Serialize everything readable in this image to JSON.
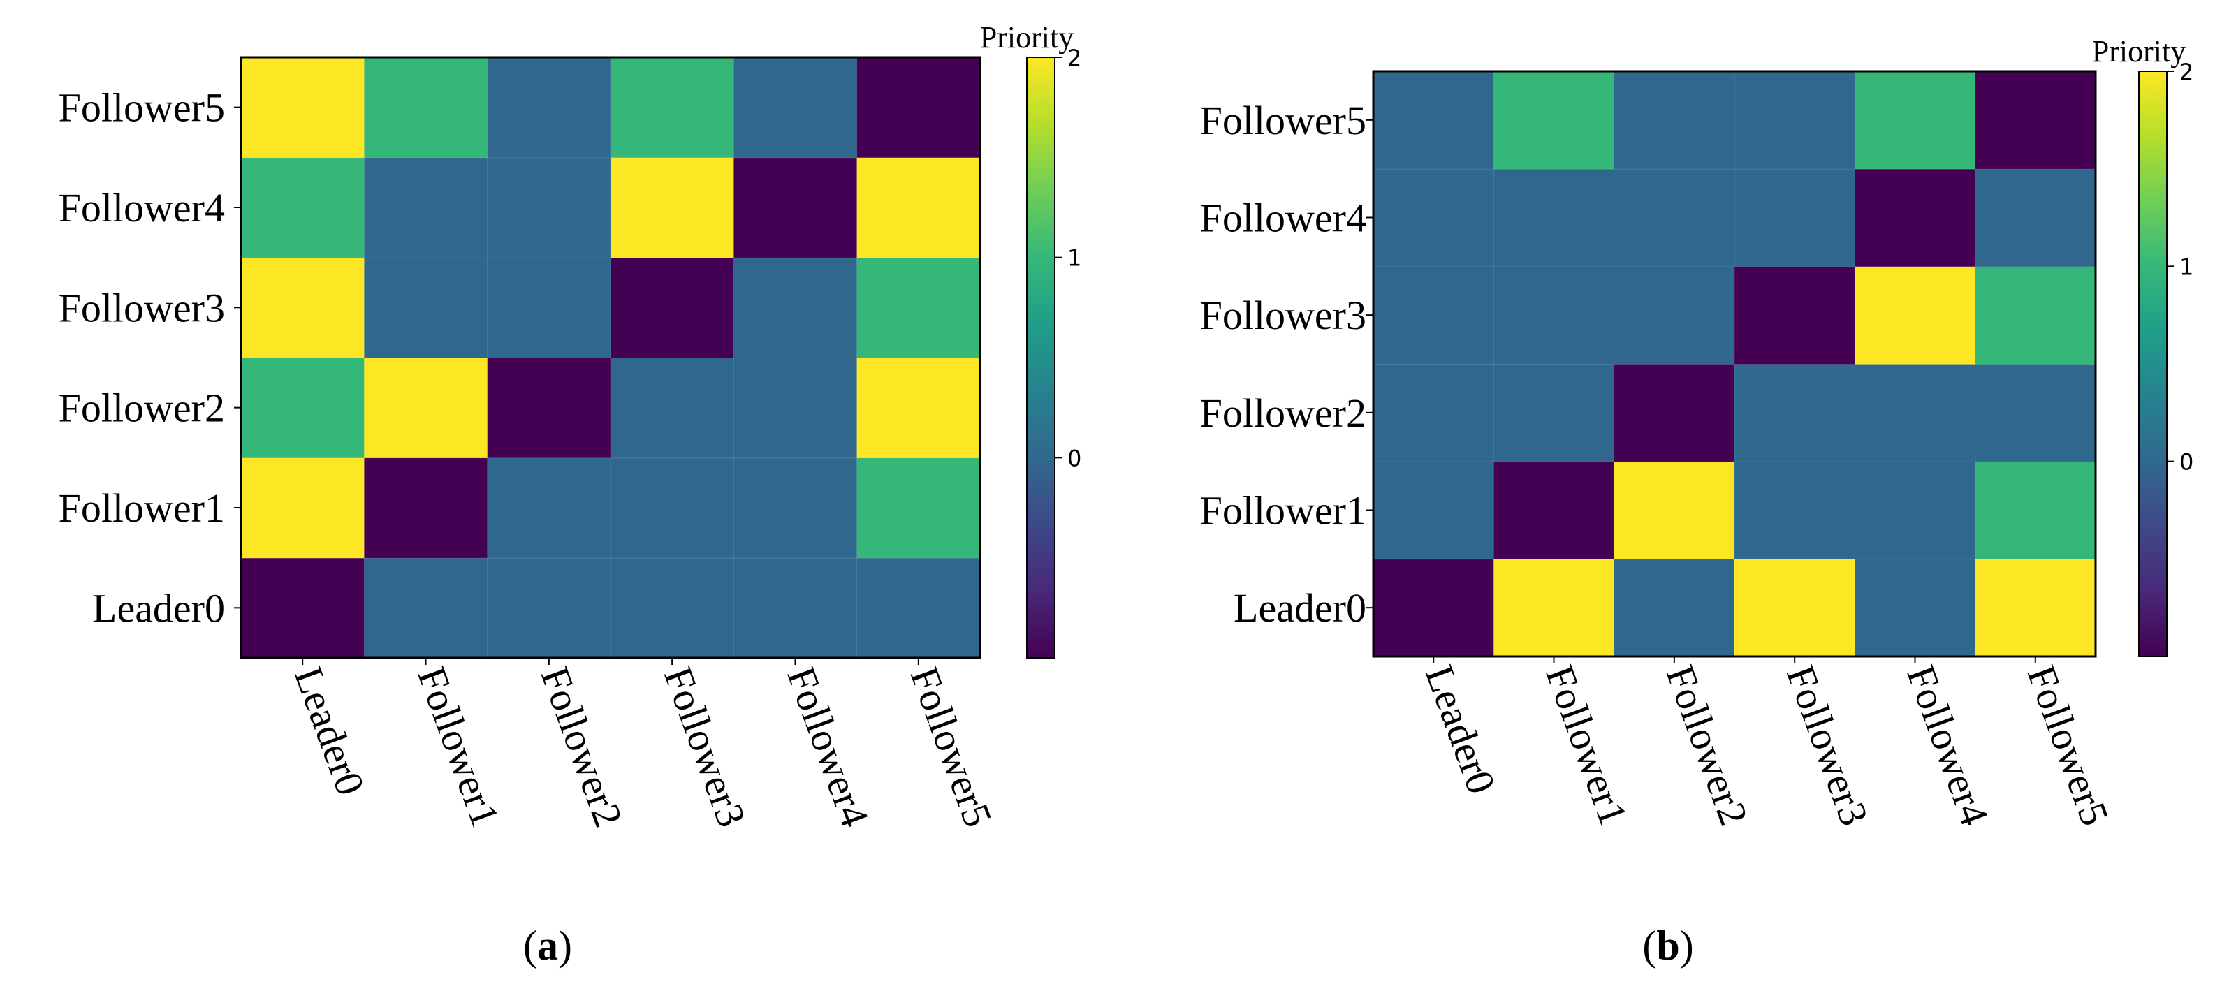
{
  "chart_data": [
    {
      "type": "heatmap",
      "panel_label": "a",
      "colorbar_title": "Priority",
      "colorbar_ticks": [
        "0",
        "1",
        "2"
      ],
      "colorbar_range": [
        -1,
        2
      ],
      "x_categories": [
        "Leader0",
        "Follower1",
        "Follower2",
        "Follower3",
        "Follower4",
        "Follower5"
      ],
      "y_categories": [
        "Leader0",
        "Follower1",
        "Follower2",
        "Follower3",
        "Follower4",
        "Follower5"
      ],
      "values": [
        [
          -1,
          0,
          0,
          0,
          0,
          0
        ],
        [
          2,
          -1,
          0,
          0,
          0,
          1
        ],
        [
          1,
          2,
          -1,
          0,
          0,
          2
        ],
        [
          2,
          0,
          0,
          -1,
          0,
          1
        ],
        [
          1,
          0,
          0,
          2,
          -1,
          2
        ],
        [
          2,
          1,
          0,
          1,
          0,
          -1
        ]
      ]
    },
    {
      "type": "heatmap",
      "panel_label": "b",
      "colorbar_title": "Priority",
      "colorbar_ticks": [
        "0",
        "1",
        "2"
      ],
      "colorbar_range": [
        -1,
        2
      ],
      "x_categories": [
        "Leader0",
        "Follower1",
        "Follower2",
        "Follower3",
        "Follower4",
        "Follower5"
      ],
      "y_categories": [
        "Leader0",
        "Follower1",
        "Follower2",
        "Follower3",
        "Follower4",
        "Follower5"
      ],
      "values": [
        [
          -1,
          2,
          0,
          2,
          0,
          2
        ],
        [
          0,
          -1,
          2,
          0,
          0,
          1
        ],
        [
          0,
          0,
          -1,
          0,
          0,
          0
        ],
        [
          0,
          0,
          0,
          -1,
          2,
          1
        ],
        [
          0,
          0,
          0,
          0,
          -1,
          0
        ],
        [
          0,
          1,
          0,
          0,
          1,
          -1
        ]
      ]
    }
  ],
  "colors": {
    "-1": "#440154",
    "0": "#30678d",
    "1": "#35b779",
    "2": "#fde725"
  }
}
